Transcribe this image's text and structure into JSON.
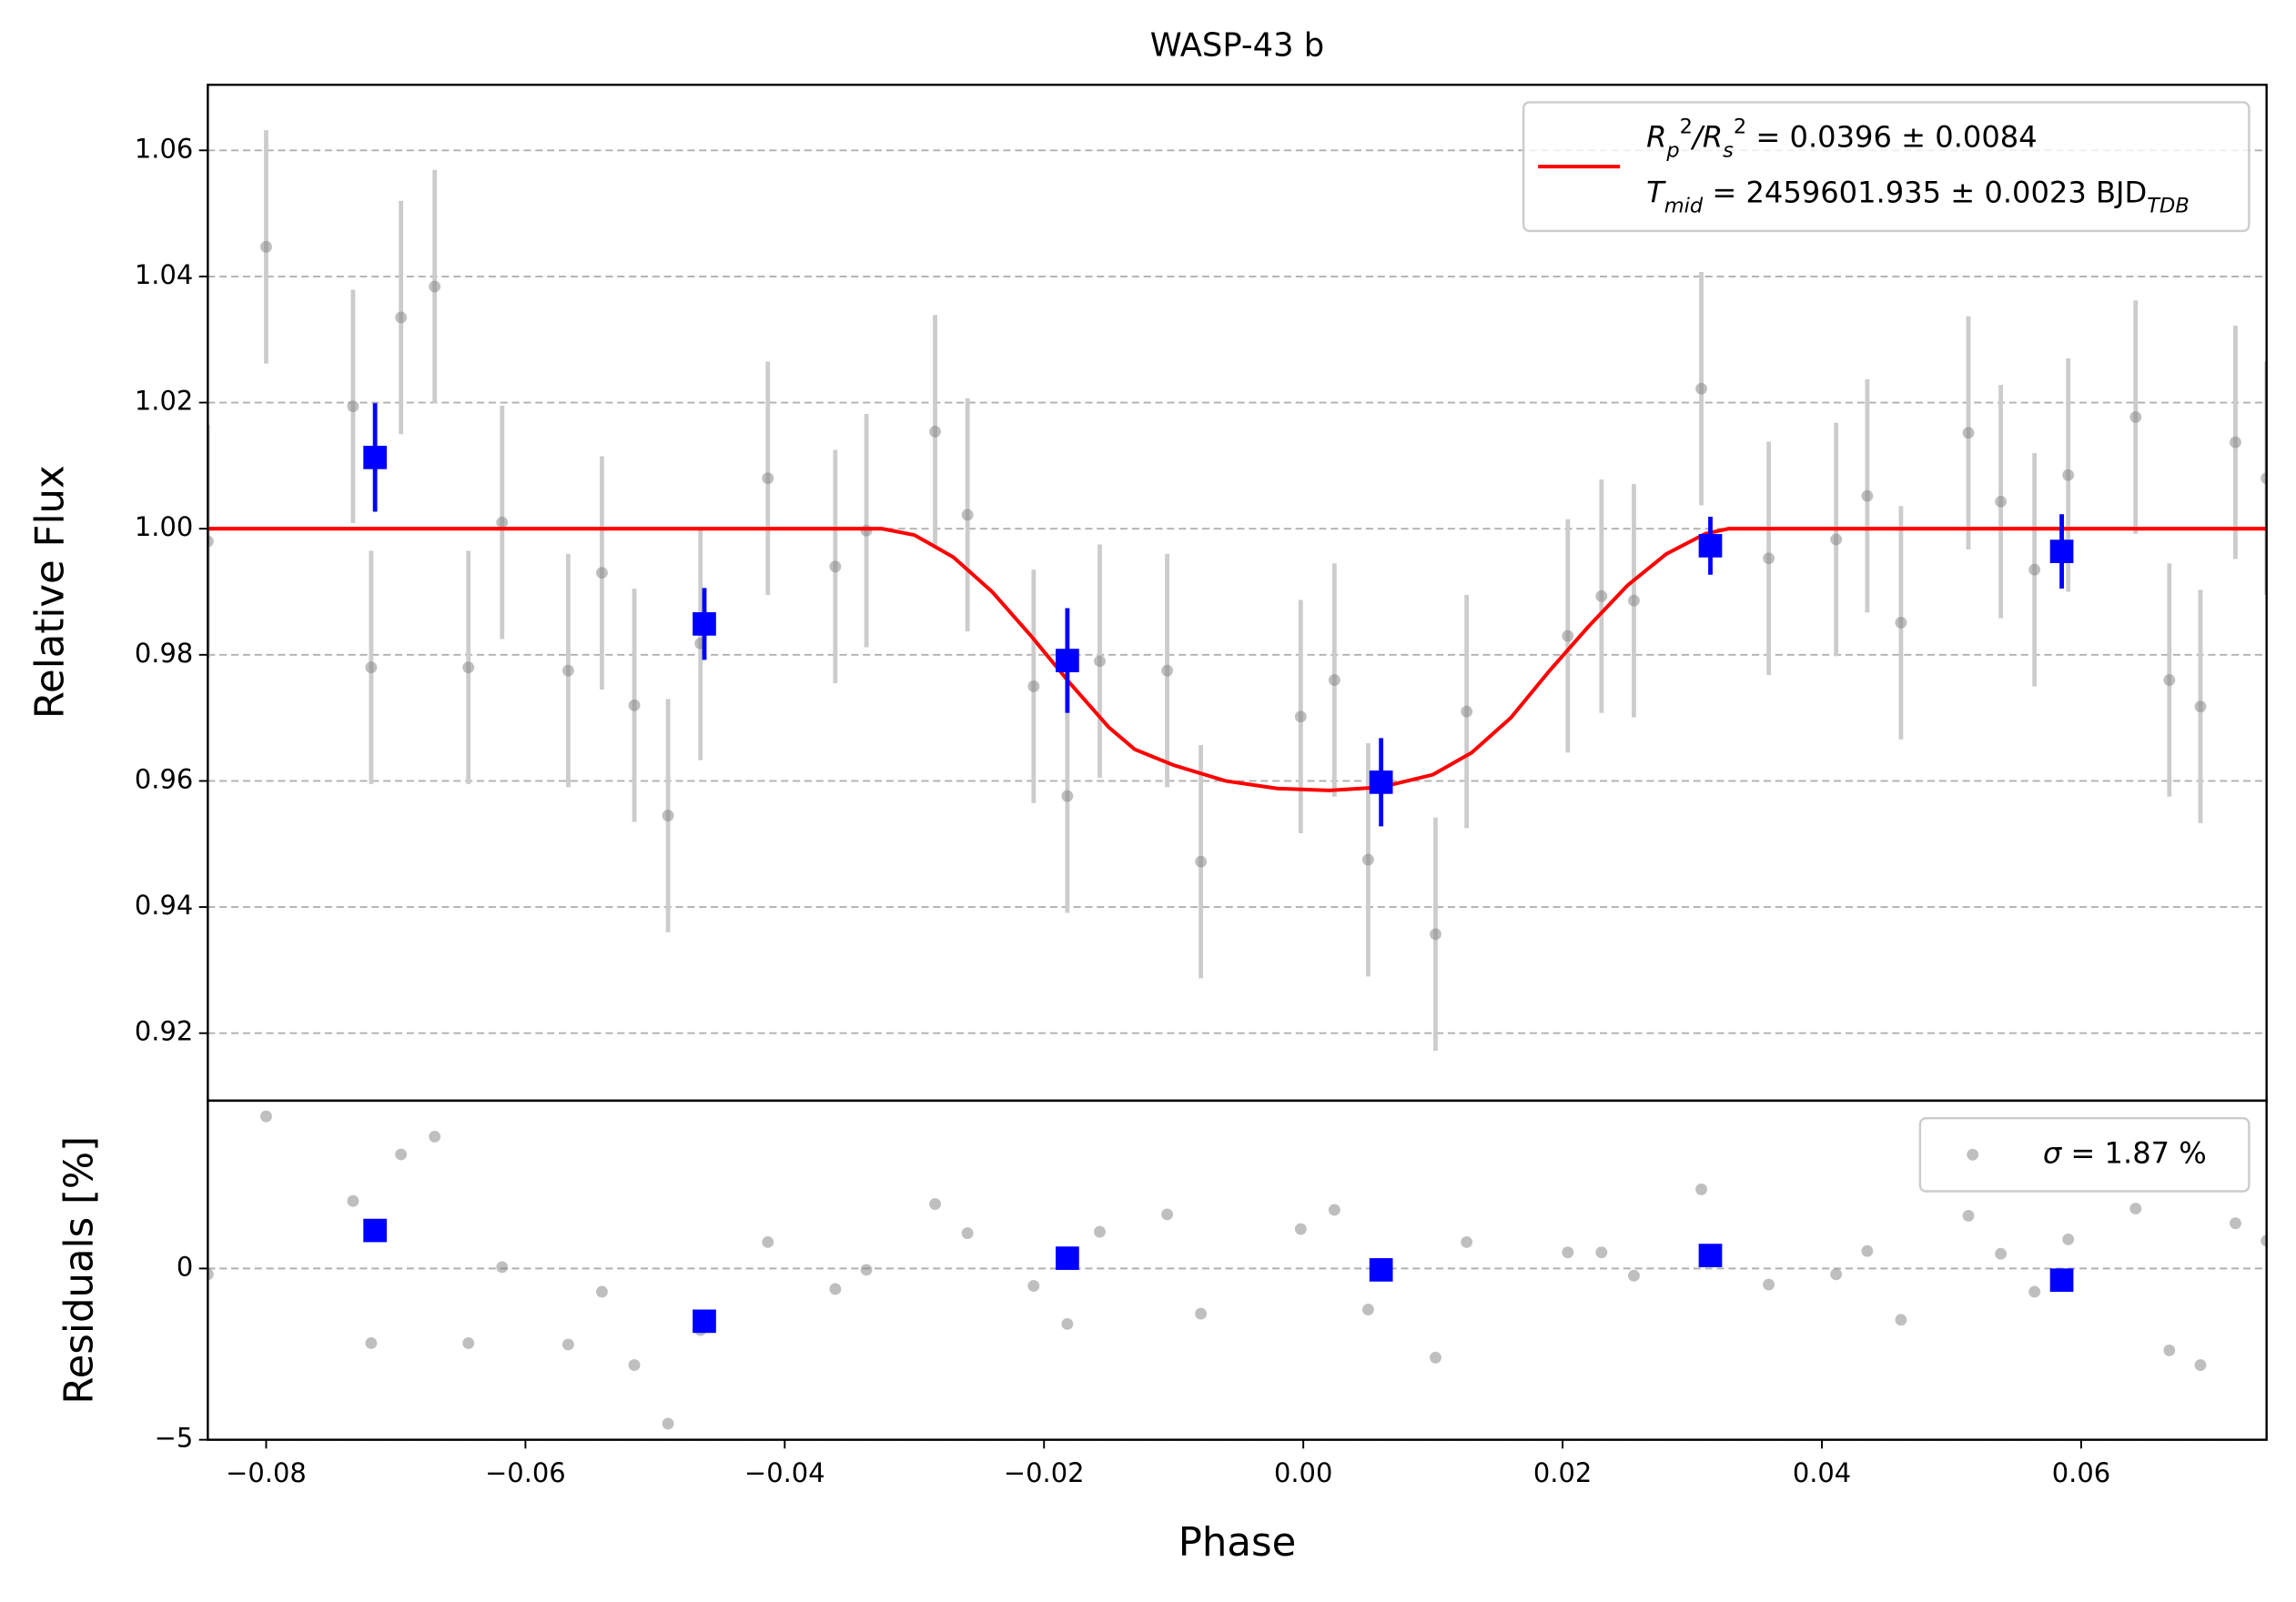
{
  "chart_data": [
    {
      "type": "errorbar",
      "title": "WASP-43 b",
      "ylabel": "Relative Flux",
      "xlim": [
        -0.0845,
        0.0743
      ],
      "ylim": [
        0.9093,
        1.0704
      ],
      "yticks": [
        0.92,
        0.94,
        0.96,
        0.98,
        {
          "value": 1,
          "label": "1.00"
        },
        1.02,
        1.04,
        1.06
      ],
      "grid": true,
      "legend": "upper right",
      "series": [
        {
          "color": "#808080",
          "errorcolor": "#cccccc",
          "x": [
            -0.0845,
            -0.08,
            -0.0733,
            -0.0719,
            -0.0696,
            -0.067,
            -0.0644,
            -0.0618,
            -0.0567,
            -0.0541,
            -0.0516,
            -0.049,
            -0.0465,
            -0.0413,
            -0.0361,
            -0.0337,
            -0.0284,
            -0.0259,
            -0.0208,
            -0.0182,
            -0.0157,
            -0.0105,
            -0.0079,
            -0.0002,
            0.0024,
            0.005,
            0.0102,
            0.0126,
            0.0204,
            0.023,
            0.0255,
            0.0307,
            0.0359,
            0.0411,
            0.0435,
            0.0461,
            0.0513,
            0.0538,
            0.0564,
            0.059,
            0.0642,
            0.0668,
            0.0692,
            0.0719,
            0.0743
          ],
          "values": [
            0.998,
            1.0447,
            1.0194,
            0.978,
            1.0335,
            1.0384,
            0.978,
            1.001,
            0.9775,
            0.993,
            0.972,
            0.9545,
            0.9818,
            1.008,
            0.994,
            0.9997,
            1.0154,
            1.0022,
            0.975,
            0.9576,
            0.979,
            0.9775,
            0.9472,
            0.9702,
            0.976,
            0.9475,
            0.9357,
            0.971,
            0.983,
            0.9893,
            0.9886,
            1.0222,
            0.9953,
            0.9983,
            1.0052,
            0.9851,
            1.0152,
            1.0043,
            0.9935,
            1.0085,
            1.0177,
            0.976,
            0.9718,
            1.0137,
            1.008
          ],
          "errors": [
            0.0185,
            0.0185,
            0.0185,
            0.0185,
            0.0185,
            0.0185,
            0.0185,
            0.0185,
            0.0185,
            0.0185,
            0.0185,
            0.0185,
            0.0185,
            0.0185,
            0.0185,
            0.0185,
            0.0185,
            0.0185,
            0.0185,
            0.0185,
            0.0185,
            0.0185,
            0.0185,
            0.0185,
            0.0185,
            0.0185,
            0.0185,
            0.0185,
            0.0185,
            0.0185,
            0.0185,
            0.0185,
            0.0185,
            0.0185,
            0.0185,
            0.0185,
            0.0185,
            0.0185,
            0.0185,
            0.0185,
            0.0185,
            0.0185,
            0.0185,
            0.0185,
            0.0185
          ]
        },
        {
          "kind": "line",
          "color": "#ff0000",
          "legend_label": [
            [
              {
                "text": "R",
                "style": "italic"
              },
              {
                "text": "p",
                "style": "sub"
              },
              {
                "text": "2",
                "style": "sup"
              },
              {
                "text": "/R",
                "style": "italic"
              },
              {
                "text": "s",
                "style": "sub"
              },
              {
                "text": "2",
                "style": "sup"
              },
              {
                "text": " = 0.0396 ± 0.0084",
                "style": "normal"
              }
            ],
            [
              {
                "text": "T",
                "style": "italic"
              },
              {
                "text": "mid",
                "style": "sub"
              },
              {
                "text": " = 2459601.935 ± 0.0023 BJD",
                "style": "normal"
              },
              {
                "text": "TDB",
                "style": "sub"
              }
            ]
          ],
          "x": [
            -0.0845,
            -0.0325,
            -0.03,
            -0.027,
            -0.024,
            -0.021,
            -0.018,
            -0.015,
            -0.013,
            -0.01,
            -0.006,
            -0.002,
            0.002,
            0.006,
            0.01,
            0.013,
            0.016,
            0.019,
            0.022,
            0.025,
            0.028,
            0.031,
            0.0328,
            0.0743
          ],
          "values": [
            1.0,
            1.0,
            0.999,
            0.9955,
            0.99,
            0.983,
            0.9755,
            0.9685,
            0.965,
            0.9625,
            0.96,
            0.9588,
            0.9585,
            0.959,
            0.961,
            0.9645,
            0.97,
            0.9775,
            0.9845,
            0.991,
            0.996,
            0.9992,
            1.0,
            1.0
          ]
        },
        {
          "kind": "binned",
          "color": "#0000ff",
          "x": [
            -0.0716,
            -0.0462,
            -0.0182,
            0.006,
            0.0314,
            0.0585
          ],
          "values": [
            1.0113,
            0.9849,
            0.9791,
            0.9598,
            0.9973,
            0.9964
          ],
          "errors": [
            0.0086,
            0.0057,
            0.0083,
            0.007,
            0.0046,
            0.0059
          ]
        }
      ]
    },
    {
      "type": "scatter",
      "ylabel": "Residuals [%]",
      "xlabel": "Phase",
      "xlim": [
        -0.0845,
        0.0743
      ],
      "ylim": [
        -5,
        4.9
      ],
      "xticks": [
        {
          "value": -0.08,
          "label": "−0.08"
        },
        {
          "value": -0.06,
          "label": "−0.06"
        },
        {
          "value": -0.04,
          "label": "−0.04"
        },
        {
          "value": -0.02,
          "label": "−0.02"
        },
        {
          "value": 0,
          "label": "0.00"
        },
        0.02,
        0.04,
        0.06
      ],
      "yticks": [
        {
          "value": -5,
          "label": "−5"
        },
        0
      ],
      "grid": true,
      "legend": "upper right",
      "series": [
        {
          "color": "#808080",
          "legend_label": [
            [
              {
                "text": "σ",
                "style": "italic"
              },
              {
                "text": " = 1.87 %",
                "style": "normal"
              }
            ]
          ],
          "x": [
            -0.0845,
            -0.08,
            -0.0733,
            -0.0719,
            -0.0696,
            -0.067,
            -0.0644,
            -0.0618,
            -0.0567,
            -0.0541,
            -0.0516,
            -0.049,
            -0.0465,
            -0.0413,
            -0.0361,
            -0.0337,
            -0.0284,
            -0.0259,
            -0.0208,
            -0.0182,
            -0.0157,
            -0.0105,
            -0.0079,
            -0.0002,
            0.0024,
            0.005,
            0.0102,
            0.0126,
            0.0204,
            0.023,
            0.0255,
            0.0307,
            0.0359,
            0.0411,
            0.0435,
            0.0461,
            0.0513,
            0.0538,
            0.0564,
            0.059,
            0.0642,
            0.0668,
            0.0692,
            0.0719,
            0.0743
          ],
          "values": [
            -0.17,
            4.44,
            1.97,
            -2.18,
            3.33,
            3.85,
            -2.18,
            0.04,
            -2.22,
            -0.68,
            -2.82,
            -4.53,
            -1.8,
            0.77,
            -0.6,
            -0.04,
            1.88,
            1.03,
            -0.51,
            -1.62,
            1.07,
            1.58,
            -1.32,
            1.15,
            1.71,
            -1.2,
            -2.6,
            0.77,
            0.47,
            0.47,
            -0.21,
            2.31,
            -0.47,
            -0.17,
            0.51,
            -1.5,
            1.54,
            0.43,
            -0.68,
            0.85,
            1.75,
            -2.39,
            -2.82,
            1.32,
            0.81
          ]
        },
        {
          "kind": "binned",
          "color": "#0000ff",
          "x": [
            -0.0716,
            -0.0462,
            -0.0182,
            0.006,
            0.0314,
            0.0585
          ],
          "values": [
            1.11,
            -1.54,
            0.3,
            -0.04,
            0.38,
            -0.34
          ]
        }
      ]
    }
  ]
}
